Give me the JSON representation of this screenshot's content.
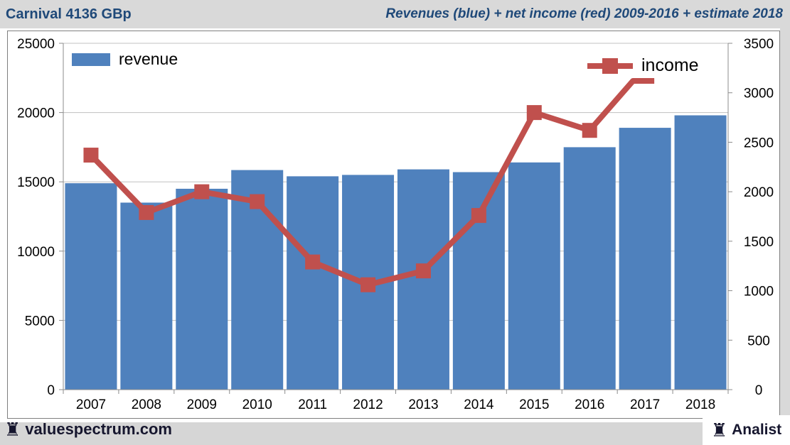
{
  "header": {
    "title": "Carnival 4136 GBp",
    "subtitle": "Revenues (blue) + net income (red) 2009-2016 + estimate 2018"
  },
  "legend": {
    "revenue_label": "revenue",
    "income_label": "income"
  },
  "footer": {
    "brand": "valuespectrum.com",
    "analyst": "Analist",
    "rook_icon": "♜"
  },
  "colors": {
    "bar_blue": "#4f81bd",
    "line_red": "#c0504d",
    "header_text": "#1f4979",
    "gridline": "#c0c0c0",
    "axis": "#8c8c8c",
    "band_gray": "#d9d9d9",
    "footer_text": "#16162e"
  },
  "chart_data": {
    "type": "combo: bar (revenue, left axis) + line with square markers (income, right axis)",
    "title": "Revenues (blue) + net income (red) 2009-2016 + estimate 2018",
    "categories": [
      "2007",
      "2008",
      "2009",
      "2010",
      "2011",
      "2012",
      "2013",
      "2014",
      "2015",
      "2016",
      "2017",
      "2018"
    ],
    "series": [
      {
        "name": "revenue",
        "type": "bar",
        "axis": "left",
        "color": "#4f81bd",
        "values": [
          14900,
          13500,
          14500,
          15850,
          15400,
          15500,
          15900,
          15700,
          16400,
          17500,
          18900,
          19800
        ]
      },
      {
        "name": "income",
        "type": "line",
        "axis": "right",
        "color": "#c0504d",
        "marker": "square",
        "values": [
          2370,
          1790,
          2000,
          1900,
          1290,
          1060,
          1200,
          1760,
          2800,
          2620,
          3120,
          null
        ],
        "markers_through_index": 9,
        "note": "last visible point (2017 position, ~3120) is the estimate endpoint drawn without a square marker"
      }
    ],
    "left_axis": {
      "min": 0,
      "max": 25000,
      "step": 5000,
      "tick_labels": [
        "0",
        "5000",
        "10000",
        "15000",
        "20000",
        "25000"
      ]
    },
    "right_axis": {
      "min": 0,
      "max": 3500,
      "step": 500,
      "tick_labels": [
        "0",
        "500",
        "1000",
        "1500",
        "2000",
        "2500",
        "3000",
        "3500"
      ]
    },
    "grid": "horizontal gridlines at left-axis ticks",
    "legend_position": "revenue top-left inside plot, income top-right inside plot"
  }
}
